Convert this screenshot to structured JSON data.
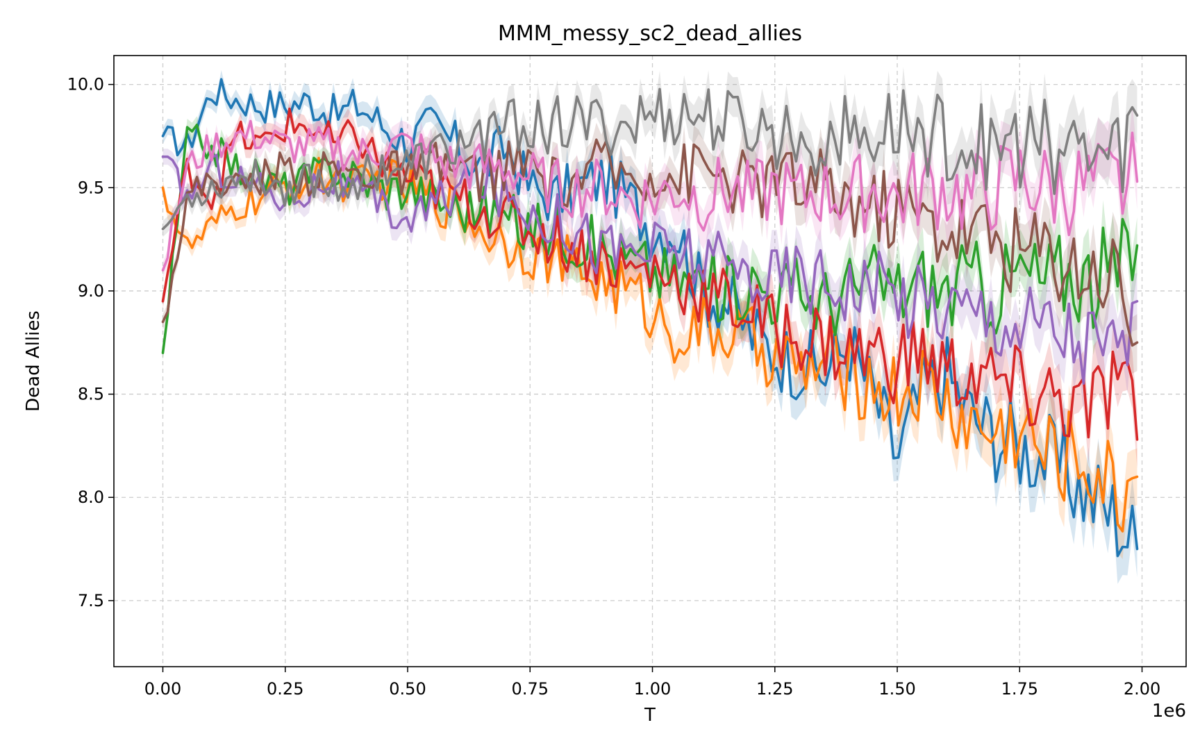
{
  "chart_data": {
    "type": "line",
    "title": "MMM_messy_sc2_dead_allies",
    "xlabel": "T",
    "ylabel": "Dead Allies",
    "x_offset_label": "1e6",
    "xlim": [
      -0.1,
      2.09
    ],
    "ylim": [
      7.18,
      10.14
    ],
    "x_ticks": [
      0.0,
      0.25,
      0.5,
      0.75,
      1.0,
      1.25,
      1.5,
      1.75,
      2.0
    ],
    "x_tick_labels": [
      "0.00",
      "0.25",
      "0.50",
      "0.75",
      "1.00",
      "1.25",
      "1.50",
      "1.75",
      "2.00"
    ],
    "y_ticks": [
      7.5,
      8.0,
      8.5,
      9.0,
      9.5,
      10.0
    ],
    "y_tick_labels": [
      "7.5",
      "8.0",
      "8.5",
      "9.0",
      "9.5",
      "10.0"
    ],
    "grid": true,
    "legend": "none",
    "shaded_band": true,
    "x": [
      0.0,
      0.05,
      0.1,
      0.15,
      0.2,
      0.25,
      0.3,
      0.35,
      0.4,
      0.45,
      0.5,
      0.55,
      0.6,
      0.65,
      0.7,
      0.75,
      0.8,
      0.85,
      0.9,
      0.95,
      1.0,
      1.05,
      1.1,
      1.15,
      1.2,
      1.25,
      1.3,
      1.35,
      1.4,
      1.45,
      1.5,
      1.55,
      1.6,
      1.65,
      1.7,
      1.75,
      1.8,
      1.85,
      1.9,
      1.95,
      1.99
    ],
    "series": [
      {
        "color": "#1f77b4",
        "values": [
          9.75,
          9.7,
          9.97,
          9.93,
          9.9,
          9.9,
          9.92,
          9.85,
          9.9,
          9.8,
          9.72,
          9.8,
          9.7,
          9.6,
          9.7,
          9.5,
          9.45,
          9.5,
          9.55,
          9.45,
          9.3,
          9.3,
          9.0,
          8.95,
          8.8,
          8.7,
          8.65,
          8.6,
          8.75,
          8.5,
          8.2,
          8.5,
          8.6,
          8.4,
          8.3,
          8.25,
          8.2,
          8.1,
          8.0,
          7.9,
          7.75
        ]
      },
      {
        "color": "#ff7f0e",
        "values": [
          9.5,
          9.2,
          9.3,
          9.4,
          9.45,
          9.5,
          9.55,
          9.55,
          9.5,
          9.55,
          9.5,
          9.45,
          9.4,
          9.3,
          9.25,
          9.2,
          9.15,
          9.1,
          9.05,
          9.0,
          8.9,
          8.8,
          8.8,
          8.8,
          8.75,
          8.7,
          8.6,
          8.65,
          8.6,
          8.55,
          8.5,
          8.55,
          8.45,
          8.35,
          8.3,
          8.35,
          8.2,
          8.2,
          8.15,
          8.0,
          8.1
        ]
      },
      {
        "color": "#2ca02c",
        "values": [
          8.7,
          9.75,
          9.7,
          9.6,
          9.55,
          9.5,
          9.55,
          9.6,
          9.55,
          9.5,
          9.5,
          9.45,
          9.4,
          9.4,
          9.35,
          9.3,
          9.3,
          9.25,
          9.2,
          9.15,
          9.1,
          9.05,
          9.05,
          9.0,
          9.05,
          9.0,
          9.0,
          8.95,
          9.0,
          9.05,
          9.0,
          9.05,
          9.0,
          9.05,
          9.0,
          9.1,
          9.05,
          9.1,
          9.05,
          9.1,
          9.22
        ]
      },
      {
        "color": "#d62728",
        "values": [
          8.95,
          9.6,
          9.45,
          9.75,
          9.7,
          9.8,
          9.8,
          9.7,
          9.75,
          9.6,
          9.55,
          9.5,
          9.45,
          9.4,
          9.35,
          9.3,
          9.25,
          9.2,
          9.15,
          9.1,
          9.1,
          9.05,
          9.0,
          8.95,
          8.9,
          8.8,
          8.8,
          8.75,
          8.7,
          8.7,
          8.65,
          8.7,
          8.6,
          8.6,
          8.55,
          8.5,
          8.5,
          8.45,
          8.4,
          8.6,
          8.28
        ]
      },
      {
        "color": "#9467bd",
        "values": [
          9.65,
          9.45,
          9.6,
          9.55,
          9.5,
          9.45,
          9.5,
          9.55,
          9.45,
          9.4,
          9.35,
          9.4,
          9.5,
          9.55,
          9.45,
          9.4,
          9.35,
          9.3,
          9.2,
          9.2,
          9.2,
          9.2,
          9.15,
          9.1,
          9.1,
          9.05,
          9.1,
          9.05,
          9.05,
          9.0,
          9.0,
          8.95,
          8.95,
          8.9,
          8.9,
          8.85,
          8.85,
          8.8,
          8.75,
          8.7,
          8.95
        ]
      },
      {
        "color": "#8c564b",
        "values": [
          8.85,
          9.45,
          9.55,
          9.5,
          9.55,
          9.6,
          9.55,
          9.6,
          9.55,
          9.6,
          9.55,
          9.6,
          9.6,
          9.55,
          9.6,
          9.6,
          9.5,
          9.55,
          9.6,
          9.55,
          9.6,
          9.55,
          9.6,
          9.55,
          9.5,
          9.55,
          9.5,
          9.5,
          9.45,
          9.4,
          9.4,
          9.35,
          9.3,
          9.3,
          9.25,
          9.2,
          9.2,
          9.15,
          9.1,
          9.1,
          8.75
        ]
      },
      {
        "color": "#e377c2",
        "values": [
          9.1,
          9.6,
          9.7,
          9.75,
          9.75,
          9.7,
          9.7,
          9.7,
          9.65,
          9.7,
          9.7,
          9.65,
          9.6,
          9.6,
          9.6,
          9.55,
          9.5,
          9.5,
          9.5,
          9.45,
          9.45,
          9.5,
          9.45,
          9.5,
          9.45,
          9.5,
          9.45,
          9.5,
          9.45,
          9.5,
          9.45,
          9.5,
          9.5,
          9.45,
          9.5,
          9.55,
          9.5,
          9.5,
          9.5,
          9.5,
          9.53
        ]
      },
      {
        "color": "#7f7f7f",
        "values": [
          9.3,
          9.45,
          9.5,
          9.55,
          9.55,
          9.5,
          9.55,
          9.5,
          9.55,
          9.6,
          9.6,
          9.65,
          9.7,
          9.75,
          9.8,
          9.8,
          9.8,
          9.8,
          9.8,
          9.8,
          9.85,
          9.85,
          9.85,
          9.8,
          9.8,
          9.75,
          9.75,
          9.75,
          9.75,
          9.75,
          9.8,
          9.75,
          9.75,
          9.7,
          9.7,
          9.7,
          9.7,
          9.7,
          9.65,
          9.65,
          9.85
        ]
      }
    ]
  }
}
